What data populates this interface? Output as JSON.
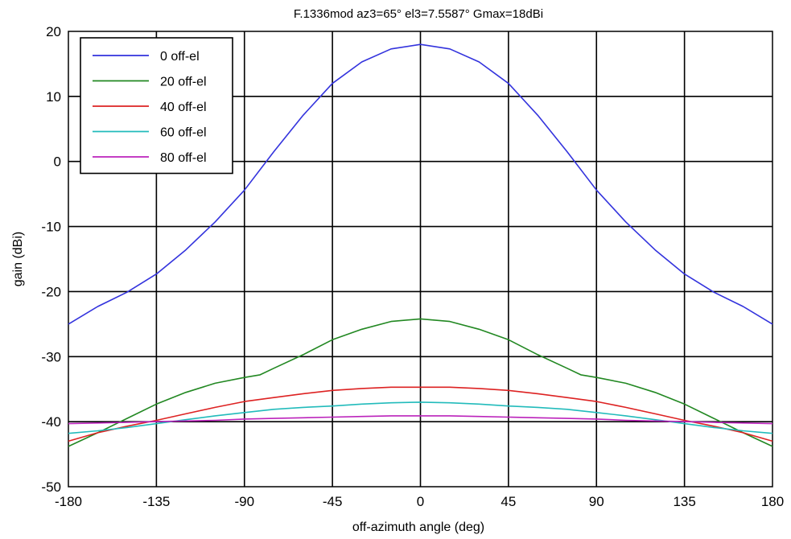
{
  "chart_data": {
    "type": "line",
    "title": "F.1336mod az3=65°  el3=7.5587°  Gmax=18dBi",
    "xlabel": "off-azimuth angle (deg)",
    "ylabel": "gain (dBi)",
    "xlim": [
      -180,
      180
    ],
    "ylim": [
      -50,
      20
    ],
    "xticks": [
      -180,
      -135,
      -90,
      -45,
      0,
      45,
      90,
      135,
      180
    ],
    "yticks": [
      20,
      10,
      0,
      -10,
      -20,
      -30,
      -40,
      -50
    ],
    "xtick_labels": [
      "-180",
      "-135",
      "-90",
      "-45",
      "0",
      "45",
      "90",
      "135",
      "180"
    ],
    "ytick_labels": [
      "20",
      "10",
      "0",
      "-10",
      "-20",
      "-30",
      "-40",
      "-50"
    ],
    "grid": true,
    "legend_position": "top-left",
    "series": [
      {
        "name": "0 off-el",
        "color": "#3333dd",
        "x": [
          -180,
          -165,
          -150,
          -135,
          -120,
          -105,
          -90,
          -75,
          -60,
          -45,
          -30,
          -15,
          0,
          15,
          30,
          45,
          60,
          75,
          90,
          105,
          120,
          135,
          150,
          165,
          180
        ],
        "y": [
          -25,
          -22.3,
          -20.1,
          -17.3,
          -13.6,
          -9.3,
          -4.4,
          1.5,
          7.1,
          12,
          15.3,
          17.3,
          18,
          17.3,
          15.3,
          12,
          7.1,
          1.5,
          -4.4,
          -9.3,
          -13.6,
          -17.3,
          -20.1,
          -22.3,
          -25
        ]
      },
      {
        "name": "20 off-el",
        "color": "#228822",
        "x": [
          -180,
          -165,
          -150,
          -135,
          -120,
          -105,
          -90,
          -82,
          -75,
          -60,
          -45,
          -30,
          -15,
          0,
          15,
          30,
          45,
          60,
          75,
          82,
          90,
          105,
          120,
          135,
          150,
          165,
          180
        ],
        "y": [
          -43.8,
          -41.7,
          -39.5,
          -37.3,
          -35.5,
          -34.1,
          -33.2,
          -32.8,
          -31.8,
          -29.7,
          -27.4,
          -25.8,
          -24.6,
          -24.2,
          -24.6,
          -25.8,
          -27.4,
          -29.7,
          -31.8,
          -32.8,
          -33.2,
          -34.1,
          -35.5,
          -37.3,
          -39.5,
          -41.7,
          -43.8
        ]
      },
      {
        "name": "40 off-el",
        "color": "#dd2222",
        "x": [
          -180,
          -165,
          -150,
          -135,
          -120,
          -105,
          -90,
          -75,
          -60,
          -45,
          -30,
          -15,
          0,
          15,
          30,
          45,
          60,
          75,
          90,
          105,
          120,
          135,
          150,
          165,
          180
        ],
        "y": [
          -43,
          -41.7,
          -40.7,
          -39.8,
          -38.8,
          -37.8,
          -36.9,
          -36.3,
          -35.7,
          -35.2,
          -34.9,
          -34.7,
          -34.7,
          -34.7,
          -34.9,
          -35.2,
          -35.7,
          -36.3,
          -36.9,
          -37.8,
          -38.8,
          -39.8,
          -40.7,
          -41.7,
          -43
        ]
      },
      {
        "name": "60 off-el",
        "color": "#22bbbb",
        "x": [
          -180,
          -165,
          -150,
          -135,
          -120,
          -105,
          -90,
          -75,
          -60,
          -45,
          -30,
          -15,
          0,
          15,
          30,
          45,
          60,
          75,
          90,
          105,
          120,
          135,
          150,
          165,
          180
        ],
        "y": [
          -41.8,
          -41.4,
          -40.9,
          -40.3,
          -39.7,
          -39.1,
          -38.6,
          -38.1,
          -37.8,
          -37.6,
          -37.3,
          -37.1,
          -37,
          -37.1,
          -37.3,
          -37.6,
          -37.8,
          -38.1,
          -38.6,
          -39.1,
          -39.7,
          -40.3,
          -40.9,
          -41.4,
          -41.8
        ]
      },
      {
        "name": "80 off-el",
        "color": "#bb22bb",
        "x": [
          -180,
          -165,
          -150,
          -135,
          -120,
          -105,
          -90,
          -75,
          -60,
          -45,
          -30,
          -15,
          0,
          15,
          30,
          45,
          60,
          75,
          90,
          105,
          120,
          135,
          150,
          165,
          180
        ],
        "y": [
          -40.3,
          -40.2,
          -40.1,
          -40,
          -39.9,
          -39.8,
          -39.6,
          -39.5,
          -39.4,
          -39.3,
          -39.2,
          -39.1,
          -39.1,
          -39.1,
          -39.2,
          -39.3,
          -39.4,
          -39.5,
          -39.6,
          -39.8,
          -39.9,
          -40,
          -40.1,
          -40.2,
          -40.3
        ]
      }
    ]
  }
}
